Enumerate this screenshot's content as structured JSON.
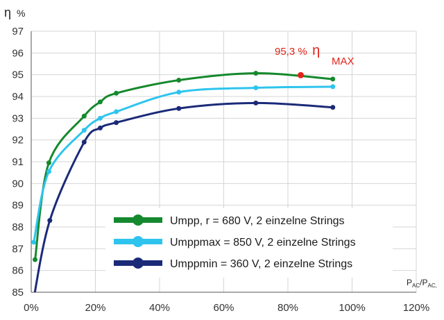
{
  "chart_data": {
    "type": "line",
    "ylabel_symbol": "η",
    "ylabel_unit": "%",
    "xlabel_main": "P",
    "xlabel_sub1": "AC",
    "xlabel_slash": "/P",
    "xlabel_sub2": "AC,",
    "xlim": [
      0,
      120
    ],
    "ylim": [
      85,
      97
    ],
    "x_ticks": [
      "0%",
      "20%",
      "40%",
      "60%",
      "80%",
      "100%",
      "120%"
    ],
    "x_tick_values": [
      0,
      20,
      40,
      60,
      80,
      100,
      120
    ],
    "y_ticks": [
      "85",
      "86",
      "87",
      "88",
      "89",
      "90",
      "91",
      "92",
      "93",
      "94",
      "95",
      "96",
      "97"
    ],
    "y_tick_values": [
      85,
      86,
      87,
      88,
      89,
      90,
      91,
      92,
      93,
      94,
      95,
      96,
      97
    ],
    "grid": true,
    "legend_position": "bottom-center",
    "series": [
      {
        "name": "Umpp, r = 680 V, 2 einzelne Strings",
        "color": "#15892d",
        "x": [
          1.2,
          5.5,
          16.5,
          21.5,
          26.5,
          46,
          70,
          94
        ],
        "y": [
          86.5,
          90.95,
          93.1,
          93.75,
          94.15,
          94.75,
          95.07,
          94.8
        ]
      },
      {
        "name": "Umppmax = 850 V, 2 einzelne Strings",
        "color": "#2ec4ee",
        "x": [
          0.8,
          5.5,
          16.5,
          21.5,
          26.5,
          46,
          70,
          94
        ],
        "y": [
          87.3,
          90.55,
          92.45,
          93.0,
          93.3,
          94.2,
          94.4,
          94.45
        ]
      },
      {
        "name": "Umppmin = 360 V, 2 einzelne Strings",
        "color": "#1b2a78",
        "x": [
          0.2,
          5.8,
          16.5,
          21.5,
          26.5,
          46,
          70,
          94
        ],
        "y": [
          84.2,
          88.3,
          91.9,
          92.55,
          92.8,
          93.45,
          93.7,
          93.5
        ]
      }
    ],
    "annotation": {
      "value_text": "95,3 %",
      "symbol": "η",
      "subscript": "MAX",
      "color": "#e2231a",
      "x": 84,
      "y": 94.98
    }
  }
}
